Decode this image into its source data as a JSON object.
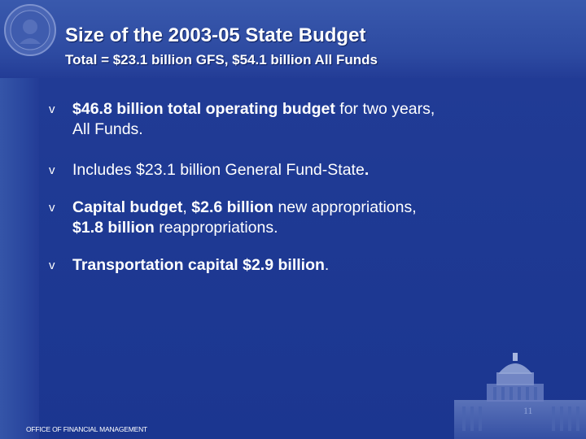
{
  "slide": {
    "title": "Size of the 2003-05 State Budget",
    "subtitle": "Total = $23.1 billion GFS, $54.1 billion All Funds",
    "bullet_glyph": "v",
    "bullets": [
      {
        "line1_bold": "$46.8 billion total operating budget",
        "line1_rest": " for two years,",
        "line2": "All Funds."
      },
      {
        "text": "Includes $23.1 billion General Fund-State",
        "end": "."
      },
      {
        "line1_bold_a": "Capital budget",
        "line1_mid": ", ",
        "line1_bold_b": "$2.6 billion",
        "line1_rest": " new appropriations,",
        "line2_bold": "$1.8 billion",
        "line2_rest": " reappropriations."
      },
      {
        "bold": "Transportation capital $2.9 billion",
        "end": "."
      }
    ],
    "page_number": "11",
    "footer": "OFFICE OF FINANCIAL MANAGEMENT"
  },
  "colors": {
    "background": "#1f3a94",
    "header": "#3959ad",
    "text": "#ffffff"
  },
  "icons": {
    "seal": "state-seal-icon",
    "capitol": "capitol-building-image",
    "bullet": "checkmark-v-bullet"
  }
}
